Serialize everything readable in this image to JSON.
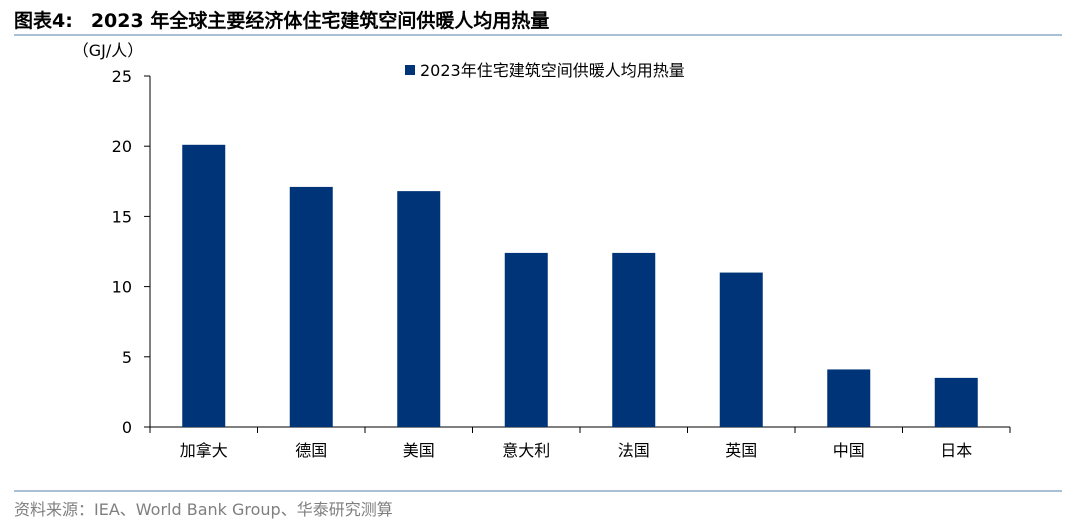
{
  "header": {
    "figure_label": "图表4:",
    "title": "2023 年全球主要经济体住宅建筑空间供暖人均用热量"
  },
  "footer": {
    "source": "资料来源：IEA、World Bank Group、华泰研究测算"
  },
  "colors": {
    "bar": "#003478",
    "rule": "#a9bfd6",
    "axis": "#000000",
    "source_text": "#7f7f7f"
  },
  "chart_data": {
    "type": "bar",
    "title": "",
    "ylabel": "（GJ/人）",
    "xlabel": "",
    "ylim": [
      0,
      25
    ],
    "yticks": [
      0,
      5,
      10,
      15,
      20,
      25
    ],
    "grid": false,
    "legend_position": "top-right",
    "categories": [
      "加拿大",
      "德国",
      "美国",
      "意大利",
      "法国",
      "英国",
      "中国",
      "日本"
    ],
    "series": [
      {
        "name": "2023年住宅建筑空间供暖人均用热量",
        "values": [
          20.1,
          17.1,
          16.8,
          12.4,
          12.4,
          11.0,
          4.1,
          3.5
        ]
      }
    ]
  }
}
